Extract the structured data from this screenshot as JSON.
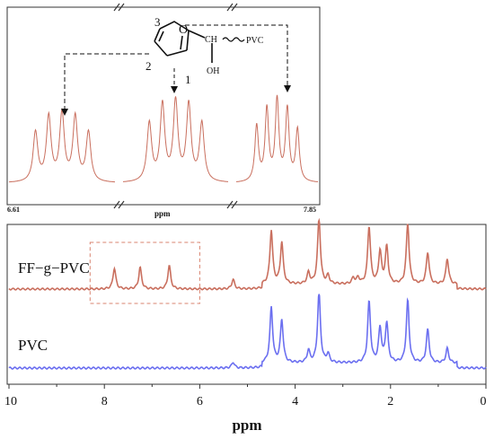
{
  "chart_data": [
    {
      "type": "line",
      "panel": "inset",
      "xlabel": "ppm",
      "x_start_label": "6.61",
      "x_end_label": "7.85",
      "axis_breaks": 2,
      "structure_labels": {
        "ring_oxygen": "O",
        "carbon_1": "1",
        "carbon_2": "2",
        "carbon_3": "3",
        "substituent": "CH",
        "hydroxyl": "OH",
        "polymer": "PVC"
      },
      "series": [
        {
          "color": "#c96f5e",
          "peaks": [
            {
              "assignment": "2",
              "group_center": 6.64,
              "lines": [
                6.6,
                6.62,
                6.64,
                6.66,
                6.68
              ],
              "heights": [
                0.55,
                0.72,
                0.75,
                0.72,
                0.55
              ]
            },
            {
              "assignment": "1",
              "group_center": 7.25,
              "lines": [
                7.21,
                7.23,
                7.25,
                7.27,
                7.29
              ],
              "heights": [
                0.65,
                0.85,
                0.88,
                0.85,
                0.65
              ]
            },
            {
              "assignment": "3",
              "group_center": 7.79,
              "lines": [
                7.75,
                7.77,
                7.79,
                7.81,
                7.83
              ],
              "heights": [
                0.62,
                0.8,
                0.9,
                0.8,
                0.58
              ]
            }
          ]
        }
      ]
    },
    {
      "type": "line",
      "panel": "main",
      "xlabel": "ppm",
      "xlim": [
        10,
        0
      ],
      "x_reversed": true,
      "xticks": [
        10,
        8,
        6,
        4,
        2,
        0
      ],
      "highlight_region": [
        8.3,
        6.0
      ],
      "series": [
        {
          "name": "FF−g−PVC",
          "color": "#c96f5e",
          "peaks": [
            {
              "x": 7.79,
              "height": 0.31
            },
            {
              "x": 7.25,
              "height": 0.32
            },
            {
              "x": 6.64,
              "height": 0.35
            },
            {
              "x": 5.3,
              "height": 0.14
            },
            {
              "x": 4.5,
              "height": 0.8
            },
            {
              "x": 4.28,
              "height": 0.62
            },
            {
              "x": 3.72,
              "height": 0.17
            },
            {
              "x": 3.5,
              "height": 1.0
            },
            {
              "x": 3.31,
              "height": 0.12
            },
            {
              "x": 2.78,
              "height": 0.09
            },
            {
              "x": 2.68,
              "height": 0.09
            },
            {
              "x": 2.45,
              "height": 0.85
            },
            {
              "x": 2.22,
              "height": 0.48
            },
            {
              "x": 2.08,
              "height": 0.55
            },
            {
              "x": 1.64,
              "height": 0.9
            },
            {
              "x": 1.22,
              "height": 0.47
            },
            {
              "x": 0.81,
              "height": 0.38
            }
          ]
        },
        {
          "name": "PVC",
          "color": "#6b6ff0",
          "peaks": [
            {
              "x": 5.3,
              "height": 0.08
            },
            {
              "x": 4.5,
              "height": 0.77
            },
            {
              "x": 4.28,
              "height": 0.6
            },
            {
              "x": 3.72,
              "height": 0.17
            },
            {
              "x": 3.5,
              "height": 1.0
            },
            {
              "x": 3.31,
              "height": 0.12
            },
            {
              "x": 2.45,
              "height": 0.85
            },
            {
              "x": 2.22,
              "height": 0.48
            },
            {
              "x": 2.08,
              "height": 0.55
            },
            {
              "x": 1.64,
              "height": 0.87
            },
            {
              "x": 1.22,
              "height": 0.46
            },
            {
              "x": 0.81,
              "height": 0.2
            }
          ]
        }
      ]
    }
  ]
}
